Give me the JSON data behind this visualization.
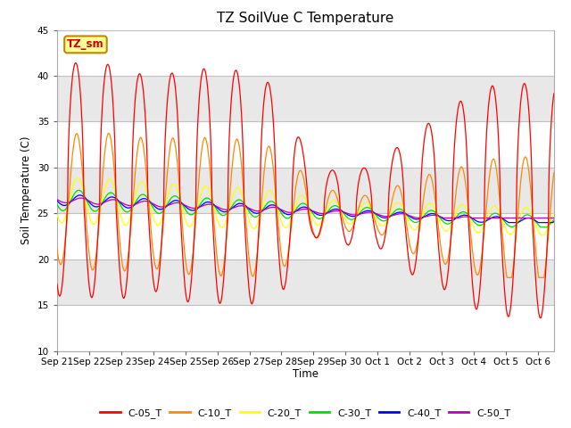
{
  "title": "TZ SoilVue C Temperature",
  "ylabel": "Soil Temperature (C)",
  "xlabel": "Time",
  "ylim": [
    10,
    45
  ],
  "yticks": [
    10,
    15,
    20,
    25,
    30,
    35,
    40,
    45
  ],
  "annotation_text": "TZ_sm",
  "series_colors": {
    "C-05_T": "#ff0000",
    "C-10_T": "#ff8800",
    "C-20_T": "#ffff00",
    "C-30_T": "#00dd00",
    "C-40_T": "#0000ff",
    "C-50_T": "#bb00bb"
  },
  "xtick_labels": [
    "Sep 21",
    "Sep 22",
    "Sep 23",
    "Sep 24",
    "Sep 25",
    "Sep 26",
    "Sep 27",
    "Sep 28",
    "Sep 29",
    "Sep 30",
    "Oct 1",
    "Oct 2",
    "Oct 3",
    "Oct 4",
    "Oct 5",
    "Oct 6"
  ],
  "total_days": 15.5,
  "points_per_day": 144,
  "legend_labels": [
    "C-05_T",
    "C-10_T",
    "C-20_T",
    "C-30_T",
    "C-40_T",
    "C-50_T"
  ],
  "plot_bg": "#e8e8e8",
  "fig_bg": "#ffffff",
  "band_colors": [
    "#ffffff",
    "#e8e8e8"
  ]
}
